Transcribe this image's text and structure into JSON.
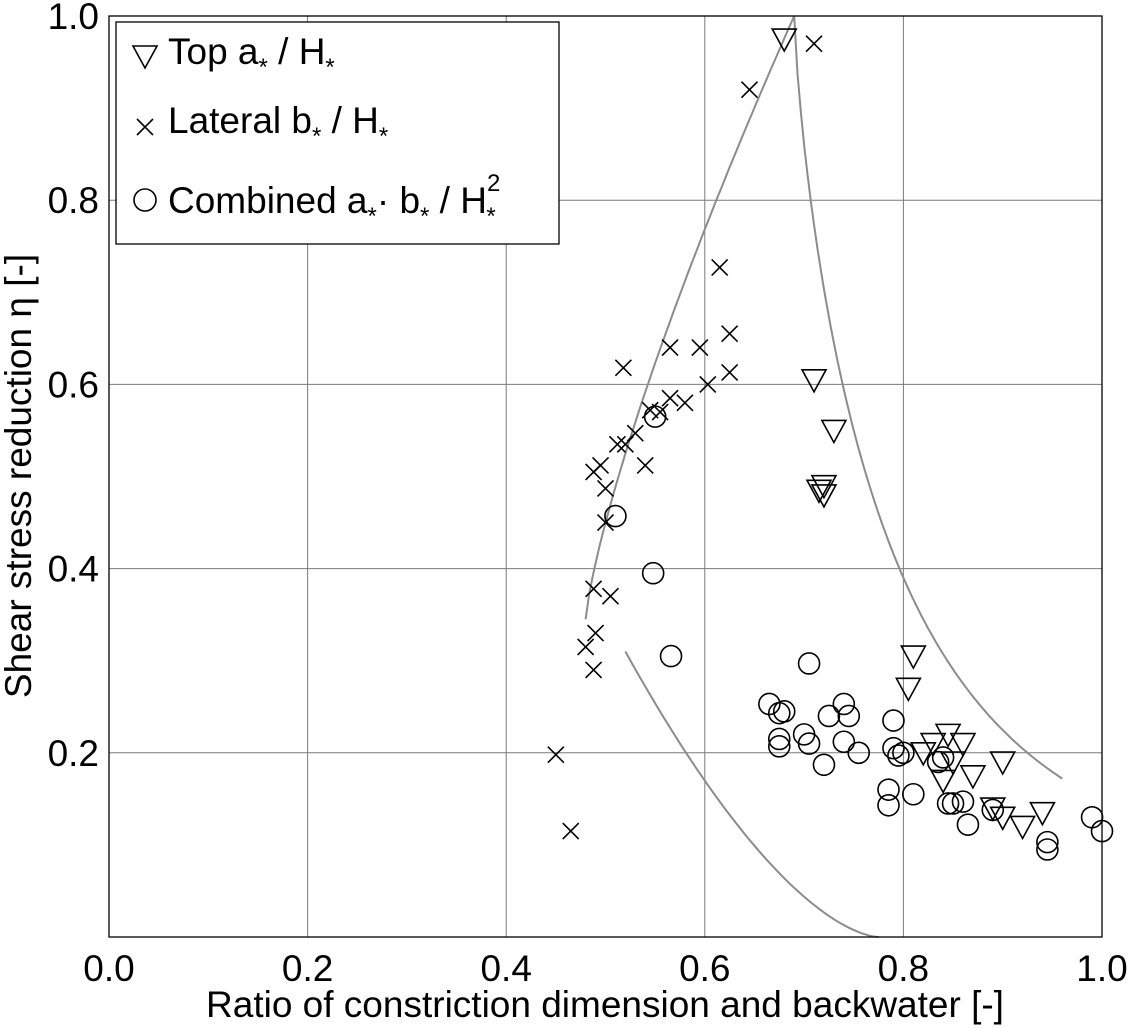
{
  "chart_data": {
    "type": "scatter",
    "title": "",
    "xlabel": "Ratio of constriction dimension and backwater [-]",
    "ylabel": "Shear stress reduction η [-]",
    "xlim": [
      0.0,
      1.0
    ],
    "ylim": [
      0.0,
      1.0
    ],
    "x_ticks": [
      "0.0",
      "0.2",
      "0.4",
      "0.6",
      "0.8",
      "1.0"
    ],
    "y_ticks": [
      "0.2",
      "0.4",
      "0.6",
      "0.8",
      "1.0"
    ],
    "grid": true,
    "legend_position": "top-left",
    "legend": {
      "top": {
        "main": "Top a",
        "sub1": "*",
        "mid": " / H",
        "sub2": "*"
      },
      "lateral": {
        "main": "Lateral b",
        "sub1": "*",
        "mid": " / H",
        "sub2": "*"
      },
      "combined": {
        "main": "Combined a",
        "sub1": "*",
        "mid": "· b",
        "sub2": "*",
        "mid2": " / H",
        "sup": "2",
        "sub3": "*"
      }
    },
    "series": [
      {
        "name": "Top a* / H*",
        "marker": "triangle-down",
        "x": [
          0.68,
          0.71,
          0.73,
          0.72,
          0.715,
          0.72,
          0.81,
          0.805,
          0.83,
          0.845,
          0.86,
          0.85,
          0.84,
          0.82,
          0.87,
          0.9,
          0.89,
          0.9,
          0.92,
          0.94
        ],
        "y": [
          0.975,
          0.605,
          0.55,
          0.49,
          0.485,
          0.48,
          0.305,
          0.27,
          0.21,
          0.22,
          0.21,
          0.19,
          0.17,
          0.2,
          0.175,
          0.19,
          0.14,
          0.13,
          0.12,
          0.135
        ]
      },
      {
        "name": "Lateral b* / H*",
        "marker": "x",
        "x": [
          0.71,
          0.645,
          0.615,
          0.625,
          0.565,
          0.595,
          0.625,
          0.518,
          0.603,
          0.58,
          0.565,
          0.555,
          0.545,
          0.53,
          0.52,
          0.512,
          0.495,
          0.488,
          0.54,
          0.5,
          0.5,
          0.488,
          0.505,
          0.49,
          0.48,
          0.488,
          0.45,
          0.465
        ],
        "y": [
          0.97,
          0.92,
          0.727,
          0.655,
          0.64,
          0.64,
          0.613,
          0.618,
          0.6,
          0.58,
          0.585,
          0.57,
          0.572,
          0.547,
          0.535,
          0.535,
          0.512,
          0.505,
          0.512,
          0.487,
          0.45,
          0.378,
          0.37,
          0.33,
          0.315,
          0.29,
          0.198,
          0.115
        ]
      },
      {
        "name": "Combined a*· b* / H*²",
        "marker": "circle",
        "x": [
          0.55,
          0.51,
          0.548,
          0.566,
          0.705,
          0.665,
          0.675,
          0.68,
          0.675,
          0.675,
          0.7,
          0.705,
          0.72,
          0.725,
          0.74,
          0.745,
          0.74,
          0.755,
          0.79,
          0.79,
          0.795,
          0.8,
          0.835,
          0.84,
          0.785,
          0.785,
          0.81,
          0.845,
          0.85,
          0.86,
          0.865,
          0.89,
          0.99,
          0.945,
          0.945,
          1.0
        ],
        "y": [
          0.565,
          0.457,
          0.395,
          0.305,
          0.297,
          0.253,
          0.243,
          0.245,
          0.215,
          0.207,
          0.22,
          0.21,
          0.187,
          0.24,
          0.253,
          0.24,
          0.212,
          0.2,
          0.235,
          0.205,
          0.197,
          0.2,
          0.19,
          0.195,
          0.16,
          0.143,
          0.155,
          0.145,
          0.145,
          0.147,
          0.122,
          0.138,
          0.13,
          0.103,
          0.095,
          0.115
        ]
      }
    ],
    "fit_colors": {
      "curve": "#8c8c8c"
    }
  }
}
